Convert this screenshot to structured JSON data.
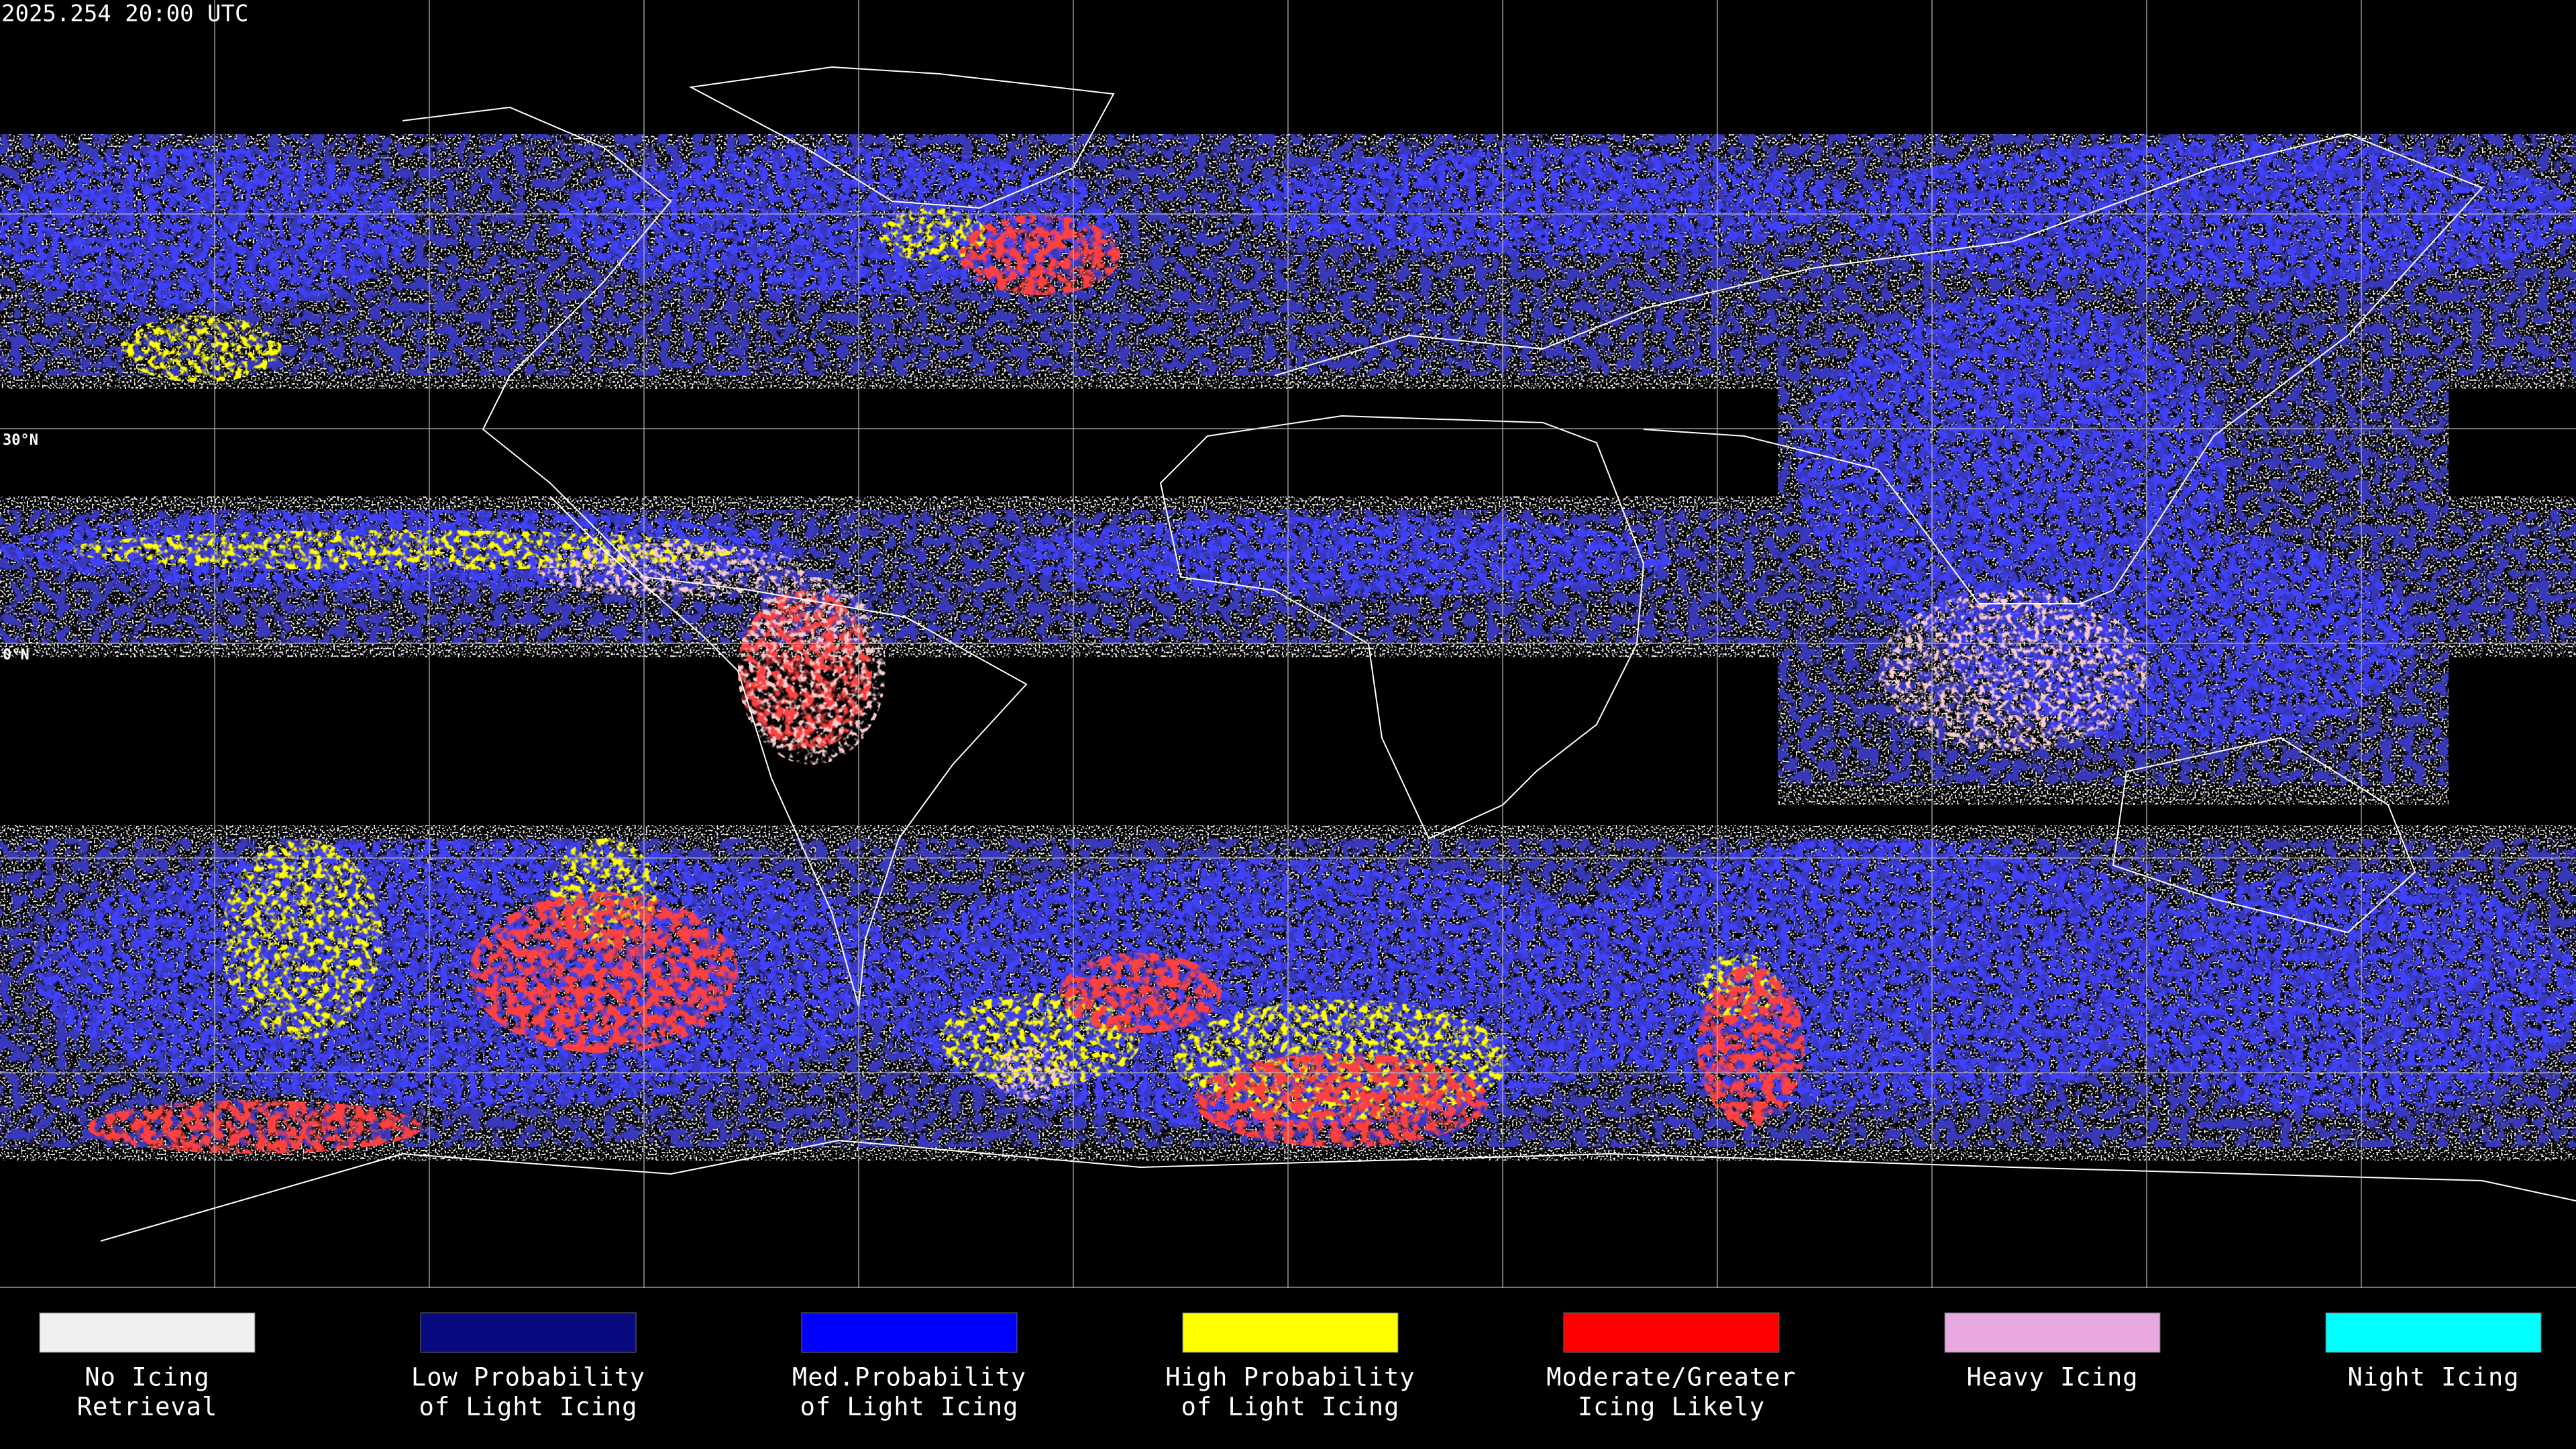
{
  "header": {
    "timestamp": "2025.254 20:00 UTC"
  },
  "map": {
    "lat_labels": [
      "30°N",
      "0°N"
    ]
  },
  "legend": {
    "items": [
      {
        "label": [
          "No Icing",
          "Retrieval"
        ],
        "color": "#f0f0f0"
      },
      {
        "label": [
          "Low Probability",
          "of Light Icing"
        ],
        "color": "#0a0a80"
      },
      {
        "label": [
          "Med.Probability",
          "of Light Icing"
        ],
        "color": "#0000ff"
      },
      {
        "label": [
          "High Probability",
          "of Light Icing"
        ],
        "color": "#ffff00"
      },
      {
        "label": [
          "Moderate/Greater",
          "Icing Likely"
        ],
        "color": "#ff0000"
      },
      {
        "label": [
          "Heavy Icing"
        ],
        "color": "#e8a8e0"
      },
      {
        "label": [
          "Night Icing"
        ],
        "color": "#00ffff"
      }
    ]
  }
}
